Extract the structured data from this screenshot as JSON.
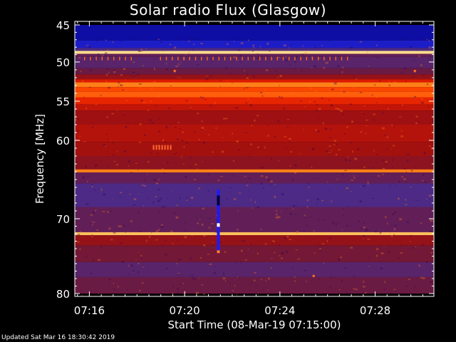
{
  "chart_data": {
    "type": "heatmap",
    "title": "Solar radio Flux (Glasgow)",
    "xlabel": "Start Time (08-Mar-19 07:15:00)",
    "ylabel": "Frequency [MHz]",
    "x_start": "07:15:00",
    "x_end": "07:30:00",
    "xticks": [
      "07:16",
      "07:20",
      "07:24",
      "07:28"
    ],
    "yticks": [
      45,
      50,
      55,
      60,
      70,
      80
    ],
    "ylim": [
      45,
      80
    ],
    "colormap": [
      "#000080",
      "#2020d0",
      "#4030a0",
      "#701838",
      "#a01010",
      "#e01a00",
      "#ff4a00",
      "#ff9020",
      "#ffd880",
      "#ffffff"
    ],
    "bands": [
      {
        "f_from": 45.0,
        "f_to": 47.1,
        "level": 0.05
      },
      {
        "f_from": 47.1,
        "f_to": 48.1,
        "level": 0.1
      },
      {
        "f_from": 48.1,
        "f_to": 48.5,
        "level": 0.25
      },
      {
        "f_from": 48.5,
        "f_to": 48.9,
        "level": 0.9
      },
      {
        "f_from": 48.9,
        "f_to": 49.3,
        "level": 0.3
      },
      {
        "f_from": 49.3,
        "f_to": 50.8,
        "level": 0.28
      },
      {
        "f_from": 50.8,
        "f_to": 51.6,
        "level": 0.32
      },
      {
        "f_from": 51.6,
        "f_to": 52.2,
        "level": 0.42
      },
      {
        "f_from": 52.2,
        "f_to": 52.6,
        "level": 0.55
      },
      {
        "f_from": 52.6,
        "f_to": 53.2,
        "level": 0.75
      },
      {
        "f_from": 53.2,
        "f_to": 53.8,
        "level": 0.66
      },
      {
        "f_from": 53.8,
        "f_to": 54.5,
        "level": 0.7
      },
      {
        "f_from": 54.5,
        "f_to": 55.4,
        "level": 0.58
      },
      {
        "f_from": 55.4,
        "f_to": 56.2,
        "level": 0.5
      },
      {
        "f_from": 56.2,
        "f_to": 58.0,
        "level": 0.44
      },
      {
        "f_from": 58.0,
        "f_to": 60.2,
        "level": 0.48
      },
      {
        "f_from": 60.2,
        "f_to": 62.0,
        "level": 0.45
      },
      {
        "f_from": 62.0,
        "f_to": 63.7,
        "level": 0.4
      },
      {
        "f_from": 63.7,
        "f_to": 64.1,
        "level": 0.75
      },
      {
        "f_from": 64.1,
        "f_to": 65.5,
        "level": 0.3
      },
      {
        "f_from": 65.5,
        "f_to": 68.5,
        "level": 0.25
      },
      {
        "f_from": 68.5,
        "f_to": 71.8,
        "level": 0.3
      },
      {
        "f_from": 71.8,
        "f_to": 72.2,
        "level": 0.85
      },
      {
        "f_from": 72.2,
        "f_to": 73.6,
        "level": 0.42
      },
      {
        "f_from": 73.6,
        "f_to": 75.8,
        "level": 0.34
      },
      {
        "f_from": 75.8,
        "f_to": 77.8,
        "level": 0.28
      },
      {
        "f_from": 77.8,
        "f_to": 80.0,
        "level": 0.32
      }
    ],
    "features": [
      {
        "kind": "vertical-dropout",
        "time": "07:21:25",
        "f_from": 66.3,
        "f_to": 74.6
      },
      {
        "kind": "burst-patch",
        "time_from": "07:18:40",
        "time_to": "07:19:30",
        "f_from": 60.6,
        "f_to": 61.2
      },
      {
        "kind": "spike",
        "time": "07:19:35",
        "f_from": 51.0,
        "f_to": 51.3
      },
      {
        "kind": "spike",
        "time": "07:29:40",
        "f_from": 51.0,
        "f_to": 51.3
      },
      {
        "kind": "spike",
        "time": "07:25:25",
        "f_from": 77.5,
        "f_to": 77.8
      }
    ]
  },
  "footer": "Updated Sat Mar 16 18:30:42 2019"
}
